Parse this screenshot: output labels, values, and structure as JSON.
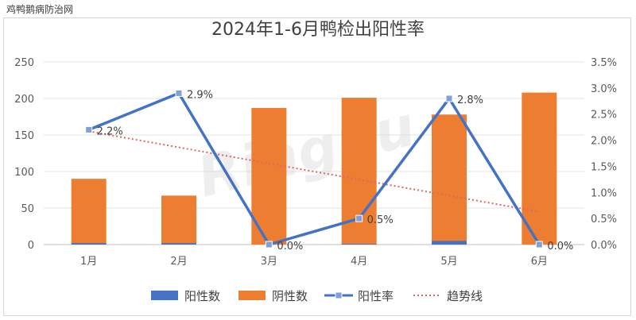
{
  "site_label": "鸡鸭鹅病防治网",
  "watermark": "Ringpu",
  "chart_data": {
    "type": "bar+line",
    "title": "2024年1-6月鸭检出阳性率",
    "categories": [
      "1月",
      "2月",
      "3月",
      "4月",
      "5月",
      "6月"
    ],
    "left_axis": {
      "min": 0,
      "max": 250,
      "ticks": [
        "0",
        "50",
        "100",
        "150",
        "200",
        "250"
      ]
    },
    "right_axis": {
      "min": 0,
      "max": 3.5,
      "ticks": [
        "0.0%",
        "0.5%",
        "1.0%",
        "1.5%",
        "2.0%",
        "2.5%",
        "3.0%",
        "3.5%"
      ]
    },
    "series": [
      {
        "name": "阳性数",
        "type": "bar",
        "axis": "left",
        "color": "#4472c4",
        "values": [
          2,
          2,
          0,
          1,
          5,
          0
        ]
      },
      {
        "name": "阴性数",
        "type": "bar",
        "axis": "left",
        "color": "#ed7d31",
        "values": [
          90,
          67,
          187,
          201,
          178,
          208
        ]
      },
      {
        "name": "阳性率",
        "type": "line",
        "axis": "right",
        "color": "#4472c4",
        "values": [
          2.2,
          2.9,
          0.0,
          0.5,
          2.8,
          0.0
        ],
        "labels": [
          "2.2%",
          "2.9%",
          "0.0%",
          "0.5%",
          "2.8%",
          "0.0%"
        ]
      },
      {
        "name": "趋势线",
        "type": "trendline",
        "axis": "right",
        "color": "#e06666",
        "style": "dotted"
      }
    ],
    "grid": true,
    "legend": "bottom"
  }
}
